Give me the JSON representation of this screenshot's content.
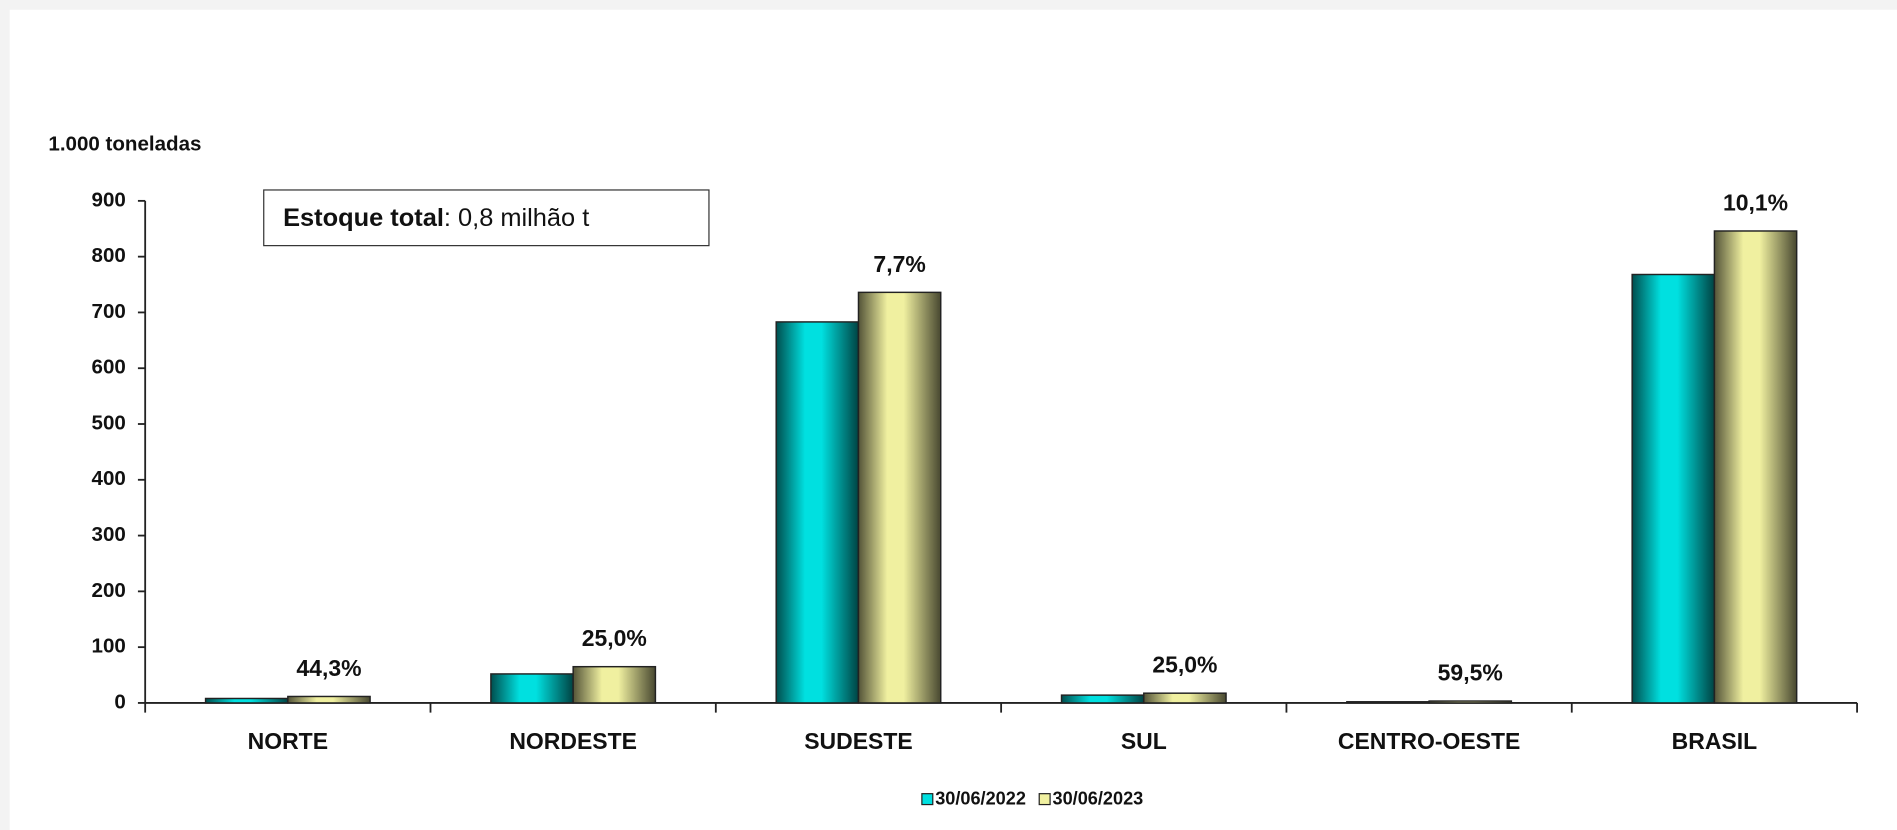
{
  "chart_data": {
    "type": "bar",
    "y_label": "1.000 toneladas",
    "note_bold": "Estoque total",
    "note_text": ": 0,8 milhão t",
    "categories": [
      "NORTE",
      "NORDESTE",
      "SUDESTE",
      "SUL",
      "CENTRO-OESTE",
      "BRASIL"
    ],
    "series": [
      {
        "name": "30/06/2022",
        "color": "#00e0e0",
        "values": [
          8,
          52,
          683,
          14,
          2.1,
          768
        ]
      },
      {
        "name": "30/06/2023",
        "color": "#f0f0a0",
        "values": [
          11.6,
          65,
          736,
          17.5,
          3.4,
          846
        ]
      }
    ],
    "growth_labels": [
      "44,3%",
      "25,0%",
      "7,7%",
      "25,0%",
      "59,5%",
      "10,1%"
    ],
    "ylim": [
      0,
      900
    ],
    "yticks": [
      0,
      100,
      200,
      300,
      400,
      500,
      600,
      700,
      800,
      900
    ],
    "grid": false
  }
}
